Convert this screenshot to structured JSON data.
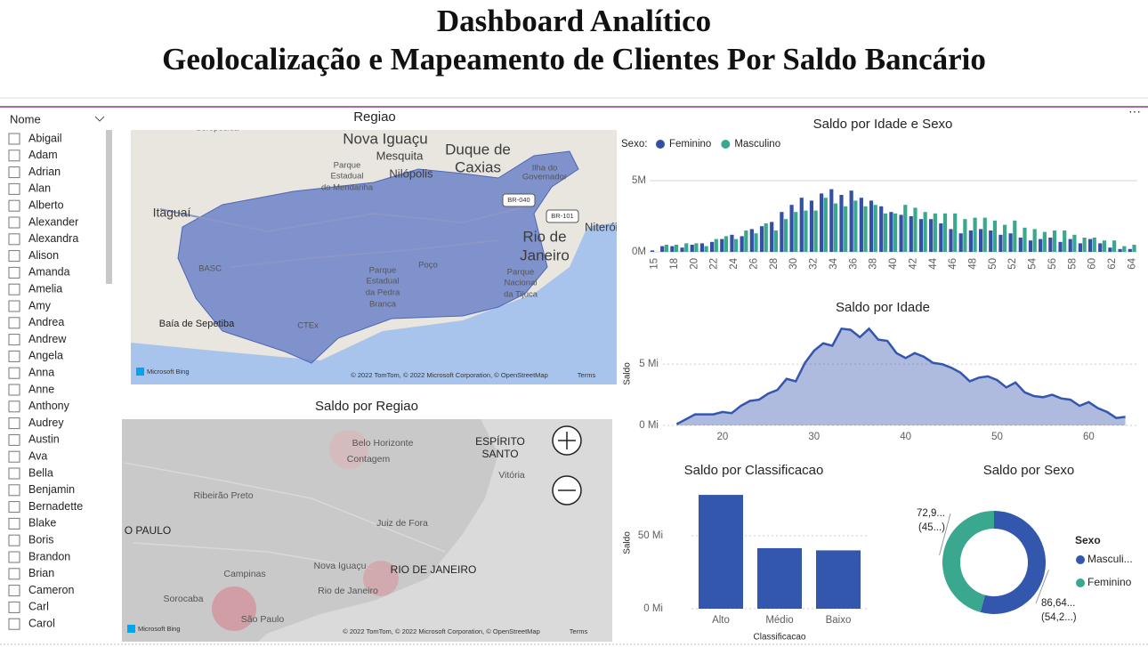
{
  "header": {
    "title_line1": "Dashboard Analítico",
    "title_line2": "Geolocalização e Mapeamento de Clientes Por Saldo Bancário"
  },
  "slicer": {
    "title": "Nome",
    "items": [
      "Abigail",
      "Adam",
      "Adrian",
      "Alan",
      "Alberto",
      "Alexander",
      "Alexandra",
      "Alison",
      "Amanda",
      "Amelia",
      "Amy",
      "Andrea",
      "Andrew",
      "Angela",
      "Anna",
      "Anne",
      "Anthony",
      "Audrey",
      "Austin",
      "Ava",
      "Bella",
      "Benjamin",
      "Bernadette",
      "Blake",
      "Boris",
      "Brandon",
      "Brian",
      "Cameron",
      "Carl",
      "Carol"
    ]
  },
  "maps": [
    {
      "title": "Regiao",
      "labels": [
        "Seropédica",
        "Nova Iguaçu",
        "Duque de",
        "Caxias",
        "Mesquita",
        "Nilópolis",
        "Parque",
        "Estadual",
        "do Mendanha",
        "Ilha do",
        "Governador",
        "Itaguaí",
        "BR-040",
        "BR-101",
        "Rio de",
        "Janeiro",
        "Niterói",
        "BASC",
        "Poço",
        "Parque",
        "Estadual",
        "da Pedra",
        "Branca",
        "Parque",
        "Nacional",
        "da Tijuca",
        "Baía de Sepetiba",
        "CTEx",
        "Microsoft Bing",
        "© 2022 TomTom, © 2022 Microsoft Corporation, © OpenStreetMap",
        "Terms"
      ]
    },
    {
      "title": "Saldo por Regiao",
      "labels": [
        "Belo Horizonte",
        "Contagem",
        "ESPÍRITO",
        "SANTO",
        "Vitória",
        "Ribeirão Preto",
        "Juiz de Fora",
        "O PAULO",
        "RIO DE JANEIRO",
        "Campinas",
        "Nova Iguaçu",
        "Rio de Janeiro",
        "Sorocaba",
        "São Paulo",
        "Microsoft Bing",
        "© 2022 TomTom, © 2022 Microsoft Corporation, © OpenStreetMap",
        "Terms"
      ]
    }
  ],
  "chart_data": [
    {
      "type": "bar",
      "title": "Saldo por Idade e Sexo",
      "legend_title": "Sexo:",
      "categories": [
        15,
        null,
        18,
        null,
        20,
        null,
        22,
        null,
        24,
        null,
        26,
        null,
        28,
        null,
        30,
        null,
        32,
        null,
        34,
        null,
        36,
        null,
        38,
        null,
        40,
        null,
        42,
        null,
        44,
        null,
        46,
        null,
        48,
        null,
        50,
        null,
        52,
        null,
        54,
        null,
        56,
        null,
        58,
        null,
        60,
        null,
        62,
        null,
        64
      ],
      "series": [
        {
          "name": "Feminino",
          "color": "#3150a6",
          "values": [
            0.1,
            0.4,
            0.4,
            0.3,
            0.5,
            0.6,
            0.7,
            0.9,
            1.2,
            1.1,
            1.6,
            1.8,
            2.1,
            2.8,
            3.3,
            3.8,
            3.6,
            4.1,
            4.4,
            4.0,
            4.3,
            3.8,
            3.6,
            3.2,
            2.8,
            2.6,
            2.5,
            2.3,
            2.3,
            2.0,
            1.6,
            1.3,
            1.5,
            1.6,
            1.5,
            1.2,
            1.3,
            1.0,
            0.8,
            0.9,
            1.0,
            0.7,
            0.9,
            0.6,
            0.9,
            0.6,
            0.3,
            0.2,
            0.2
          ]
        },
        {
          "name": "Masculino",
          "color": "#3aa88e",
          "values": [
            0,
            0.5,
            0.5,
            0.6,
            0.6,
            0.4,
            0.9,
            1.1,
            0.9,
            1.5,
            1.3,
            2.0,
            1.5,
            2.3,
            2.8,
            2.9,
            2.9,
            3.8,
            3.4,
            3.2,
            3.6,
            3.2,
            3.3,
            2.7,
            2.7,
            3.3,
            3.1,
            2.8,
            2.7,
            2.7,
            2.7,
            2.3,
            2.4,
            2.4,
            2.2,
            1.9,
            2.2,
            1.7,
            1.6,
            1.4,
            1.5,
            1.5,
            1.2,
            1.0,
            1.0,
            0.8,
            0.8,
            0.4,
            0.5
          ]
        }
      ],
      "ylim": [
        0,
        5.5
      ],
      "yticks": [
        {
          "value": 0,
          "label": "0M"
        },
        {
          "value": 5,
          "label": "5M"
        }
      ],
      "grid": true
    },
    {
      "type": "area",
      "title": "Saldo por Idade",
      "y_label": "Saldo",
      "color": "#3456ad",
      "x": [
        15,
        17,
        18,
        19,
        20,
        21,
        22,
        23,
        24,
        25,
        26,
        27,
        28,
        29,
        30,
        31,
        32,
        33,
        34,
        35,
        36,
        37,
        38,
        39,
        40,
        41,
        42,
        43,
        44,
        45,
        46,
        47,
        48,
        49,
        50,
        51,
        52,
        53,
        54,
        55,
        56,
        57,
        58,
        59,
        60,
        61,
        62,
        63,
        64
      ],
      "values": [
        0.1,
        0.9,
        0.9,
        0.9,
        1.1,
        1.0,
        1.6,
        2.0,
        2.1,
        2.6,
        2.9,
        3.8,
        3.6,
        5.1,
        6.1,
        6.7,
        6.5,
        7.9,
        7.8,
        7.2,
        7.9,
        7.0,
        6.9,
        5.9,
        5.5,
        5.9,
        5.6,
        5.1,
        5.0,
        4.7,
        4.3,
        3.6,
        3.9,
        4.0,
        3.7,
        3.1,
        3.5,
        2.7,
        2.4,
        2.3,
        2.5,
        2.2,
        2.1,
        1.6,
        1.9,
        1.4,
        1.1,
        0.6,
        0.7
      ],
      "xlim": [
        13.5,
        65.5
      ],
      "xticks": [
        20,
        30,
        40,
        50,
        60
      ],
      "ylim": [
        0,
        8.5
      ],
      "yticks": [
        {
          "value": 0,
          "label": "0 Mi"
        },
        {
          "value": 5,
          "label": "5 Mi"
        }
      ],
      "grid": true
    },
    {
      "type": "bar",
      "title": "Saldo por Classificacao",
      "x_label": "Classificacao",
      "y_label": "Saldo",
      "color": "#3357ad",
      "categories": [
        "Alto",
        "Médio",
        "Baixo"
      ],
      "values": [
        78,
        41.5,
        40
      ],
      "ylim": [
        0,
        85
      ],
      "yticks": [
        {
          "value": 0,
          "label": "0 Mi"
        },
        {
          "value": 50,
          "label": "50 Mi"
        }
      ],
      "grid": true
    },
    {
      "type": "donut",
      "title": "Saldo por Sexo",
      "legend_title": "Sexo",
      "categories": [
        "Masculi...",
        "Feminino"
      ],
      "values": [
        86.649,
        72.999
      ],
      "value_labels": [
        "86,64...",
        "72,9..."
      ],
      "share_labels": [
        "(54,2...)",
        "(45...)"
      ],
      "colors": [
        "#3357ad",
        "#3aa88e"
      ]
    }
  ]
}
